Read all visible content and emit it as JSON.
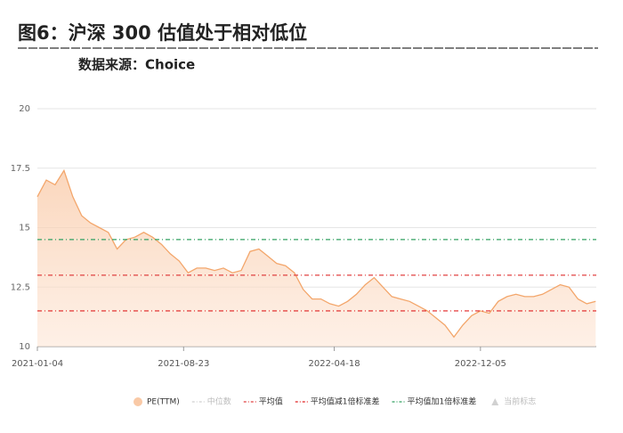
{
  "chart_data": {
    "type": "area",
    "title": "图6：沪深 300 估值处于相对低位",
    "subtitle": "数据来源：Choice",
    "xlim": [
      "2021-01-04",
      "2023-06-06"
    ],
    "xticks": [
      "2021-01-04",
      "2021-08-23",
      "2022-04-18",
      "2022-12-05"
    ],
    "ylim": [
      10,
      20
    ],
    "yticks": [
      10,
      12.5,
      15,
      17.5,
      20
    ],
    "grid": true,
    "x": [
      "2021-01-04",
      "2021-01-18",
      "2021-02-01",
      "2021-02-15",
      "2021-03-01",
      "2021-03-15",
      "2021-03-29",
      "2021-04-12",
      "2021-04-26",
      "2021-05-10",
      "2021-05-24",
      "2021-06-07",
      "2021-06-21",
      "2021-07-05",
      "2021-07-19",
      "2021-08-02",
      "2021-08-16",
      "2021-08-30",
      "2021-09-13",
      "2021-09-27",
      "2021-10-11",
      "2021-10-25",
      "2021-11-08",
      "2021-11-22",
      "2021-12-06",
      "2021-12-20",
      "2022-01-03",
      "2022-01-17",
      "2022-01-31",
      "2022-02-14",
      "2022-02-28",
      "2022-03-14",
      "2022-03-28",
      "2022-04-11",
      "2022-04-25",
      "2022-05-09",
      "2022-05-23",
      "2022-06-06",
      "2022-06-20",
      "2022-07-04",
      "2022-07-18",
      "2022-08-01",
      "2022-08-15",
      "2022-08-29",
      "2022-09-12",
      "2022-09-26",
      "2022-10-10",
      "2022-10-24",
      "2022-11-07",
      "2022-11-21",
      "2022-12-05",
      "2022-12-19",
      "2023-01-02",
      "2023-01-16",
      "2023-01-30",
      "2023-02-13",
      "2023-02-27",
      "2023-03-13",
      "2023-03-27",
      "2023-04-10",
      "2023-04-24",
      "2023-05-08",
      "2023-05-22",
      "2023-06-05"
    ],
    "series": [
      {
        "name": "PE(TTM)",
        "color": "#f3a66b",
        "values": [
          16.3,
          17.0,
          16.8,
          17.4,
          16.3,
          15.5,
          15.2,
          15.0,
          14.8,
          14.1,
          14.5,
          14.6,
          14.8,
          14.6,
          14.3,
          13.9,
          13.6,
          13.1,
          13.3,
          13.3,
          13.2,
          13.3,
          13.1,
          13.2,
          14.0,
          14.1,
          13.8,
          13.5,
          13.4,
          13.1,
          12.4,
          12.0,
          12.0,
          11.8,
          11.7,
          11.9,
          12.2,
          12.6,
          12.9,
          12.5,
          12.1,
          12.0,
          11.9,
          11.7,
          11.5,
          11.2,
          10.9,
          10.4,
          10.9,
          11.3,
          11.5,
          11.4,
          11.9,
          12.1,
          12.2,
          12.1,
          12.1,
          12.2,
          12.4,
          12.6,
          12.5,
          12.0,
          11.8,
          11.9
        ]
      }
    ],
    "reference_lines": [
      {
        "name": "中位数",
        "color": "#999999",
        "hidden": true
      },
      {
        "name": "平均值",
        "color": "#e04040",
        "value": 13.0
      },
      {
        "name": "平均值减1倍标准差",
        "color": "#e02020",
        "value": 11.5
      },
      {
        "name": "平均值加1倍标准差",
        "color": "#30a060",
        "value": 14.5
      },
      {
        "name": "当前标志",
        "color": "#999999",
        "hidden": true
      }
    ]
  }
}
